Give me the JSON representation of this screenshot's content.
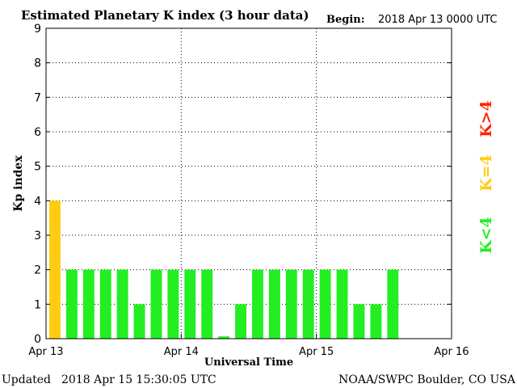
{
  "chart_data": {
    "type": "bar",
    "title": "Estimated Planetary K index (3 hour data)",
    "begin_label": "Begin:",
    "begin_value": "2018 Apr 13 0000 UTC",
    "xlabel": "Universal Time",
    "ylabel": "Kp index",
    "ylim": [
      0,
      9
    ],
    "yticks": [
      "0",
      "1",
      "2",
      "3",
      "4",
      "5",
      "6",
      "7",
      "8",
      "9"
    ],
    "xticks": [
      "Apr 13",
      "Apr 14",
      "Apr 15",
      "Apr 16"
    ],
    "x_range_days": [
      0,
      3
    ],
    "interval_hours": 3,
    "grid": true,
    "values": [
      4,
      2,
      2,
      2,
      2,
      1,
      2,
      2,
      2,
      2,
      0.067,
      1,
      2,
      2,
      2,
      2,
      2,
      2,
      1,
      1,
      2
    ],
    "legend": [
      {
        "label": "K<4",
        "color": "#22ee22"
      },
      {
        "label": "K=4",
        "color": "#ffcc11"
      },
      {
        "label": "K>4",
        "color": "#ff2200"
      }
    ],
    "colors": {
      "below4": "#22ee22",
      "equal4": "#ffcc11",
      "above4": "#ff2200"
    }
  },
  "footer": {
    "updated_label": "Updated",
    "updated_value": "2018 Apr 15 15:30:05 UTC",
    "source": "NOAA/SWPC Boulder, CO USA"
  }
}
